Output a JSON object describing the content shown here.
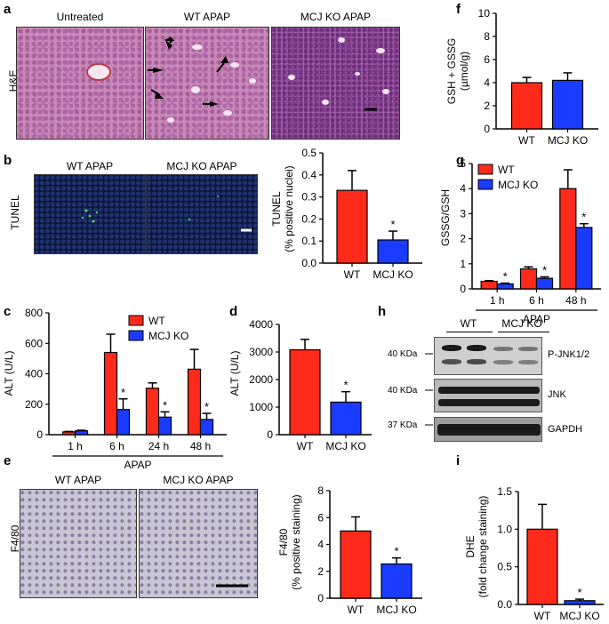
{
  "panels": {
    "a": {
      "letter": "a",
      "row_label": "H&E",
      "image_titles": [
        "Untreated",
        "WT APAP",
        "MCJ KO APAP"
      ]
    },
    "b": {
      "letter": "b",
      "row_label": "TUNEL",
      "image_titles": [
        "WT APAP",
        "MCJ KO APAP"
      ]
    },
    "c": {
      "letter": "c",
      "xgroup": "APAP"
    },
    "d": {
      "letter": "d"
    },
    "e": {
      "letter": "e",
      "row_label": "F4/80",
      "image_titles": [
        "WT APAP",
        "MCJ KO APAP"
      ]
    },
    "f": {
      "letter": "f"
    },
    "g": {
      "letter": "g",
      "xgroup": "APAP"
    },
    "h": {
      "letter": "h",
      "groups": [
        "WT",
        "MCJ KO"
      ],
      "bands": [
        "P-JNK1/2",
        "JNK",
        "GAPDH"
      ],
      "markers": [
        "40 KDa",
        "40 KDa",
        "37 KDa"
      ]
    },
    "i": {
      "letter": "i"
    }
  },
  "colors": {
    "wt": "#ff2a1a",
    "ko": "#1a3cff"
  },
  "chart_data": [
    {
      "id": "f",
      "type": "bar",
      "categories": [
        "WT",
        "MCJ KO"
      ],
      "values": [
        4.0,
        4.2
      ],
      "errors": [
        0.45,
        0.65
      ],
      "ylabel": "GSH + GSSG (µmol/g)",
      "ylim": [
        0,
        10
      ],
      "yticks": [
        0,
        2,
        4,
        6,
        8,
        10
      ],
      "significance": [
        "",
        ""
      ]
    },
    {
      "id": "b",
      "type": "bar",
      "categories": [
        "WT",
        "MCJ KO"
      ],
      "values": [
        0.33,
        0.105
      ],
      "errors": [
        0.09,
        0.04
      ],
      "ylabel": "TUNEL (% positive nuclei)",
      "ylim": [
        0,
        0.5
      ],
      "yticks": [
        "0.0",
        "0.1",
        "0.2",
        "0.3",
        "0.4",
        "0.5"
      ],
      "significance": [
        "",
        "*"
      ]
    },
    {
      "id": "g",
      "type": "bar",
      "categories": [
        "1 h",
        "6 h",
        "48 h"
      ],
      "series": [
        {
          "name": "WT",
          "values": [
            0.3,
            0.8,
            4.0
          ],
          "errors": [
            0.03,
            0.08,
            0.75
          ]
        },
        {
          "name": "MCJ KO",
          "values": [
            0.2,
            0.42,
            2.45
          ],
          "errors": [
            0.03,
            0.06,
            0.15
          ]
        }
      ],
      "ylabel": "GSSG/GSH",
      "xlabel": "APAP",
      "ylim": [
        0,
        5
      ],
      "yticks": [
        0,
        1,
        2,
        3,
        4,
        5
      ],
      "significance": [
        "*",
        "*",
        "*"
      ]
    },
    {
      "id": "c",
      "type": "bar",
      "categories": [
        "1 h",
        "6 h",
        "24 h",
        "48 h"
      ],
      "series": [
        {
          "name": "WT",
          "values": [
            18,
            540,
            305,
            430
          ],
          "errors": [
            3,
            120,
            35,
            130
          ]
        },
        {
          "name": "MCJ KO",
          "values": [
            25,
            165,
            115,
            100
          ],
          "errors": [
            4,
            70,
            35,
            40
          ]
        }
      ],
      "ylabel": "ALT (U/L)",
      "xlabel": "APAP",
      "ylim": [
        0,
        800
      ],
      "yticks": [
        0,
        200,
        400,
        600,
        800
      ],
      "significance": [
        "",
        "*",
        "*",
        "*"
      ]
    },
    {
      "id": "d",
      "type": "bar",
      "categories": [
        "WT",
        "MCJ KO"
      ],
      "values": [
        3080,
        1180
      ],
      "errors": [
        380,
        380
      ],
      "ylabel": "ALT (U/L)",
      "ylim": [
        0,
        4000
      ],
      "yticks": [
        0,
        1000,
        2000,
        3000,
        4000
      ],
      "significance": [
        "",
        "*"
      ]
    },
    {
      "id": "e",
      "type": "bar",
      "categories": [
        "WT",
        "MCJ KO"
      ],
      "values": [
        5.0,
        2.55
      ],
      "errors": [
        1.05,
        0.45
      ],
      "ylabel": "F4/80 (% positive staining)",
      "ylim": [
        0,
        8
      ],
      "yticks": [
        0,
        2,
        4,
        6,
        8
      ],
      "significance": [
        "",
        "*"
      ]
    },
    {
      "id": "i",
      "type": "bar",
      "categories": [
        "WT",
        "MCJ KO"
      ],
      "values": [
        1.0,
        0.05
      ],
      "errors": [
        0.33,
        0.02
      ],
      "ylabel": "DHE (fold change staining)",
      "ylim": [
        0,
        1.5
      ],
      "yticks": [
        "0.0",
        "0.5",
        "1.0",
        "1.5"
      ],
      "significance": [
        "",
        "*"
      ]
    }
  ]
}
